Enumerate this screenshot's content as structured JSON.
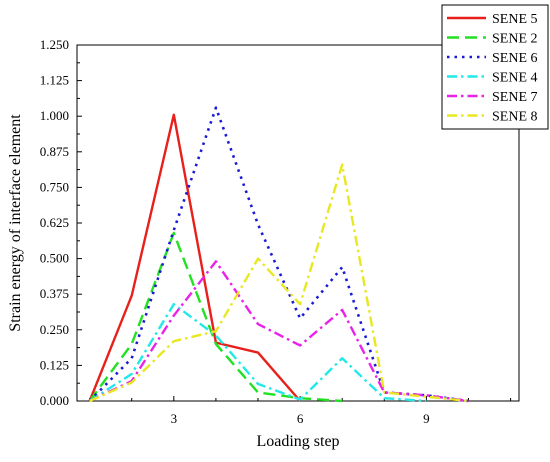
{
  "chart_data": {
    "type": "line",
    "title": "",
    "xlabel": "Loading step",
    "ylabel": "Strain energy of interface element",
    "xlim": [
      0.7,
      11.2
    ],
    "ylim": [
      0.0,
      1.25
    ],
    "x": [
      1,
      2,
      3,
      4,
      5,
      6,
      7,
      8,
      9,
      10
    ],
    "xticks": [
      3,
      6,
      9
    ],
    "xtick_labels": [
      "3",
      "6",
      "9"
    ],
    "yticks": [
      0.0,
      0.125,
      0.25,
      0.375,
      0.5,
      0.625,
      0.75,
      0.875,
      1.0,
      1.125,
      1.25
    ],
    "ytick_labels": [
      "0.000",
      "0.125",
      "0.250",
      "0.375",
      "0.500",
      "0.625",
      "0.750",
      "0.875",
      "1.000",
      "1.125",
      "1.250"
    ],
    "grid": false,
    "legend_position": "top-right",
    "series": [
      {
        "name": "SENE 5",
        "color": "#e8201c",
        "dash": "solid",
        "values": [
          0.0,
          0.37,
          1.005,
          0.205,
          0.17,
          0.0,
          null,
          null,
          null,
          null
        ]
      },
      {
        "name": "SENE 2",
        "color": "#22e022",
        "dash": "long-dash",
        "values": [
          0.0,
          0.2,
          0.59,
          0.2,
          0.03,
          0.01,
          0.0,
          null,
          null,
          null
        ]
      },
      {
        "name": "SENE 6",
        "color": "#1a1ad6",
        "dash": "dot",
        "values": [
          0.0,
          0.15,
          0.6,
          1.03,
          0.62,
          0.29,
          0.47,
          0.03,
          0.02,
          0.0
        ]
      },
      {
        "name": "SENE 4",
        "color": "#22e8e8",
        "dash": "dash-dot",
        "values": [
          0.0,
          0.095,
          0.34,
          0.23,
          0.06,
          0.005,
          0.15,
          0.01,
          0.0,
          null
        ]
      },
      {
        "name": "SENE 7",
        "color": "#e822e8",
        "dash": "dash-dot",
        "values": [
          0.0,
          0.07,
          0.3,
          0.49,
          0.27,
          0.195,
          0.32,
          0.03,
          0.02,
          0.0
        ]
      },
      {
        "name": "SENE 8",
        "color": "#e8e822",
        "dash": "dash-dot",
        "values": [
          0.0,
          0.065,
          0.21,
          0.245,
          0.5,
          0.34,
          0.83,
          0.03,
          0.015,
          0.0
        ]
      }
    ]
  }
}
